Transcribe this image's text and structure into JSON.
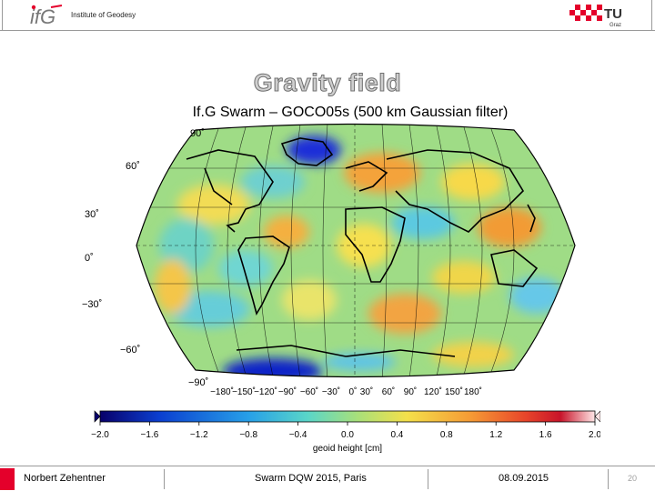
{
  "header": {
    "logo_text": "ifG",
    "institute": "Institute of Geodesy",
    "tu_logo_text": "TU",
    "tu_logo_sub": "Graz"
  },
  "slide": {
    "title": "Gravity field",
    "subtitle": "If.G Swarm – GOCO05s (500 km Gaussian filter)"
  },
  "map": {
    "projection": "Robinson",
    "lat_labels": [
      "90˚",
      "60˚",
      "30˚",
      "0˚",
      "−30˚",
      "−60˚",
      "−90˚"
    ],
    "lon_labels": [
      "−180˚",
      "−150˚",
      "−120˚",
      "−90˚",
      "−60˚",
      "−30˚",
      "0˚",
      "30˚",
      "60˚",
      "90˚",
      "120˚",
      "150˚",
      "180˚"
    ],
    "colormap": [
      "#08006a",
      "#0b3fd0",
      "#27a0e8",
      "#5ad6c8",
      "#a8e07a",
      "#f4e04a",
      "#f59a35",
      "#e8452a",
      "#c8142a",
      "#ffe6e6"
    ]
  },
  "colorbar": {
    "ticks": [
      "−2.0",
      "−1.6",
      "−1.2",
      "−0.8",
      "−0.4",
      "0.0",
      "0.4",
      "0.8",
      "1.2",
      "1.6",
      "2.0"
    ],
    "label": "geoid height [cm]",
    "min": -2.0,
    "max": 2.0
  },
  "footer": {
    "author": "Norbert Zehentner",
    "event": "Swarm DQW 2015, Paris",
    "date": "08.09.2015",
    "page": "20"
  }
}
